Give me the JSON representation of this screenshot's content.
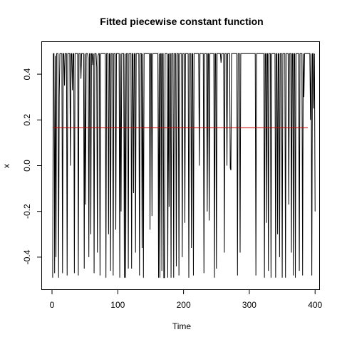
{
  "chart_data": {
    "type": "line",
    "title": "Fitted piecewise constant function",
    "xlabel": "Time",
    "ylabel": "x",
    "xlim": [
      0,
      390
    ],
    "ylim": [
      -0.5,
      0.5
    ],
    "grid": false,
    "x_ticks": [
      0,
      100,
      200,
      300,
      400
    ],
    "y_ticks": [
      -0.4,
      -0.2,
      0.0,
      0.2,
      0.4
    ],
    "x_tick_labels": [
      "0",
      "100",
      "200",
      "300",
      "400"
    ],
    "y_tick_labels": [
      "-0.4",
      "-0.2",
      "0.0",
      "0.2",
      "0.4"
    ],
    "series": [
      {
        "color": "#000000",
        "note": "observed series, length 389",
        "x_start": 1,
        "values": [
          -0.49,
          0.49,
          0.49,
          -0.47,
          0.48,
          -0.4,
          0.49,
          0.49,
          0.49,
          -0.49,
          0.3,
          0.49,
          0.49,
          0.49,
          0.49,
          -0.47,
          0.49,
          0.49,
          0.35,
          0.49,
          0.49,
          0.49,
          -0.48,
          0.49,
          0.49,
          0.49,
          0.49,
          0.0,
          0.49,
          0.49,
          0.33,
          0.49,
          0.49,
          -0.47,
          0.49,
          0.49,
          0.49,
          0.49,
          0.49,
          -0.48,
          0.49,
          0.49,
          0.49,
          0.38,
          0.49,
          0.49,
          0.49,
          0.49,
          -0.45,
          0.49,
          -0.17,
          0.49,
          0.49,
          0.49,
          0.47,
          -0.4,
          0.49,
          0.49,
          -0.3,
          0.49,
          0.49,
          0.44,
          0.49,
          -0.47,
          0.49,
          0.49,
          0.49,
          0.43,
          -0.38,
          0.48,
          0.49,
          0.49,
          -0.48,
          0.49,
          0.49,
          0.49,
          0.49,
          0.49,
          0.49,
          0.49,
          0.49,
          -0.49,
          0.49,
          0.49,
          0.49,
          -0.3,
          0.49,
          0.49,
          -0.46,
          0.49,
          0.49,
          0.49,
          -0.48,
          0.49,
          0.49,
          0.49,
          -0.28,
          0.49,
          0.49,
          0.49,
          0.49,
          0.49,
          -0.49,
          0.49,
          -0.2,
          0.49,
          0.49,
          0.49,
          0.49,
          -0.49,
          0.49,
          -0.49,
          0.49,
          0.49,
          0.49,
          -0.45,
          0.49,
          0.49,
          0.49,
          0.49,
          -0.45,
          0.49,
          0.49,
          -0.12,
          0.49,
          0.49,
          -0.38,
          0.49,
          0.49,
          0.49,
          0.49,
          0.49,
          -0.48,
          0.49,
          0.49,
          0.49,
          -0.36,
          0.49,
          -0.49,
          0.49,
          0.49,
          0.49,
          0.49,
          0.49,
          0.49,
          0.49,
          0.49,
          0.49,
          -0.28,
          0.49,
          0.49,
          -0.22,
          0.49,
          0.49,
          0.49,
          0.49,
          0.49,
          0.49,
          0.49,
          0.49,
          0.49,
          -0.49,
          0.49,
          -0.49,
          0.49,
          0.49,
          -0.46,
          0.49,
          0.49,
          -0.49,
          -0.49,
          0.49,
          0.49,
          0.49,
          0.49,
          -0.49,
          0.49,
          -0.18,
          0.49,
          0.49,
          -0.49,
          0.49,
          0.49,
          0.49,
          -0.49,
          0.49,
          0.49,
          0.49,
          -0.44,
          0.49,
          0.49,
          0.49,
          -0.48,
          0.49,
          0.49,
          0.49,
          0.49,
          -0.4,
          0.49,
          0.49,
          0.49,
          -0.25,
          0.49,
          0.49,
          0.49,
          0.49,
          0.49,
          -0.49,
          0.49,
          0.49,
          0.49,
          -0.36,
          0.49,
          0.49,
          -0.48,
          0.49,
          0.49,
          0.49,
          0.49,
          0.49,
          0.49,
          0.49,
          0.49,
          0.0,
          0.49,
          0.49,
          0.49,
          0.49,
          0.49,
          0.49,
          -0.47,
          0.49,
          0.49,
          0.49,
          0.49,
          -0.2,
          0.49,
          0.49,
          -0.24,
          0.49,
          0.49,
          0.49,
          0.49,
          0.49,
          0.49,
          0.49,
          -0.49,
          0.49,
          0.49,
          -0.45,
          0.49,
          0.49,
          0.49,
          0.49,
          0.49,
          0.49,
          0.45,
          0.49,
          0.49,
          0.49,
          0.49,
          -0.38,
          0.49,
          0.49,
          0.49,
          0.0,
          0.49,
          0.49,
          0.49,
          0.49,
          -0.01,
          -0.02,
          0.49,
          0.49,
          0.49,
          0.49,
          0.49,
          0.49,
          0.49,
          0.49,
          0.49,
          -0.48,
          0.49,
          0.49,
          0.49,
          -0.38,
          0.49,
          0.49,
          0.49,
          0.49,
          0.49,
          0.49,
          0.49,
          0.49,
          0.49,
          0.49,
          0.49,
          0.49,
          0.49,
          0.49,
          0.49,
          0.49,
          0.49,
          0.49,
          0.49,
          0.49,
          0.49,
          0.49,
          0.49,
          -0.48,
          0.49,
          0.49,
          0.49,
          0.49,
          0.49,
          0.49,
          0.49,
          0.49,
          0.49,
          0.49,
          0.49,
          0.49,
          -0.49,
          0.49,
          0.49,
          -0.25,
          0.49,
          0.49,
          -0.46,
          0.49,
          0.49,
          0.49,
          -0.49,
          0.49,
          0.49,
          0.49,
          0.49,
          0.49,
          0.49,
          -0.49,
          0.49,
          0.49,
          -0.3,
          0.49,
          0.49,
          -0.4,
          0.49,
          0.49,
          0.49,
          -0.49,
          0.49,
          0.49,
          0.49,
          0.49,
          -0.49,
          0.49,
          0.49,
          0.49,
          0.49,
          -0.17,
          0.49,
          0.49,
          0.49,
          -0.38,
          0.49,
          0.49,
          -0.48,
          0.49,
          0.49,
          -0.49,
          0.49,
          0.49,
          0.49,
          0.49,
          0.49,
          -0.46,
          0.49,
          0.49,
          0.49,
          0.49,
          -0.48,
          0.49,
          0.3,
          0.49,
          0.49,
          0.49,
          0.49,
          0.49,
          0.49,
          0.49,
          0.49,
          0.49,
          0.2,
          0.49,
          -0.48,
          0.49,
          0.49,
          0.25,
          0.49,
          -0.2
        ]
      },
      {
        "color": "#cc0000",
        "note": "fitted piecewise constant level",
        "x": [
          1,
          389
        ],
        "values": [
          0.166,
          0.166
        ]
      }
    ]
  }
}
